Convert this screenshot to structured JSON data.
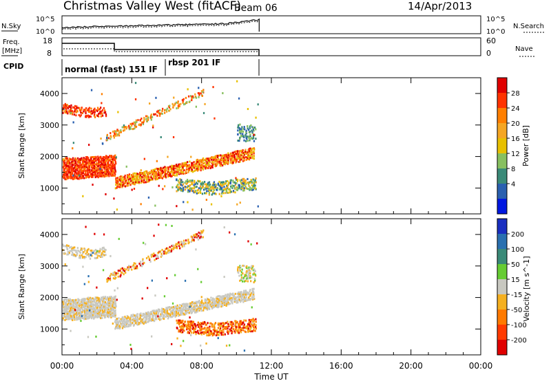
{
  "header": {
    "station": "Christmas Valley West (fitACF)",
    "beam": "Beam 06",
    "date": "14/Apr/2013"
  },
  "top_panels": {
    "nsky_label": "N.Sky",
    "nsky_ticks": [
      "10^5",
      "10^0"
    ],
    "nsky_right_ticks": [
      "10^5",
      "10^0"
    ],
    "nsearch_label": "N.Search",
    "freq_label": "Freq.",
    "freq_unit": "[MHz]",
    "freq_ticks": [
      "18",
      "8"
    ],
    "nave_ticks": [
      "60",
      "0"
    ],
    "nave_label": "Nave",
    "cpid_label": "CPID",
    "cpid_segments": [
      {
        "label": "normal (fast) 151 IF",
        "start_hr": 0,
        "end_hr": 6
      },
      {
        "label": "rbsp 201 IF",
        "start_hr": 6,
        "end_hr": 11.3
      }
    ]
  },
  "chart_data": [
    {
      "type": "heatmap",
      "name": "power",
      "ylabel": "Slant Range [km]",
      "yticks": [
        "4000",
        "3000",
        "2000",
        "1000"
      ],
      "ylim": [
        180,
        4500
      ],
      "xlim": [
        0,
        24
      ],
      "colorbar": {
        "label": "Power [dB]",
        "ticks": [
          "28",
          "24",
          "20",
          "16",
          "12",
          "8",
          "4"
        ],
        "colors": [
          "#e00000",
          "#ff3300",
          "#ff7f00",
          "#f5a623",
          "#e8c000",
          "#88c060",
          "#3a8a78",
          "#2a60b0",
          "#0018e0"
        ]
      }
    },
    {
      "type": "heatmap",
      "name": "velocity",
      "ylabel": "Slant Range [km]",
      "yticks": [
        "4000",
        "3000",
        "2000",
        "1000"
      ],
      "ylim": [
        180,
        4500
      ],
      "xlim": [
        0,
        24
      ],
      "colorbar": {
        "label": "Velocity [m s^-1]",
        "ticks": [
          "200",
          "100",
          "50",
          "15",
          "-15",
          "-50",
          "-100",
          "-200"
        ],
        "colors": [
          "#1a2fc0",
          "#2a70b0",
          "#3a8a78",
          "#66cc33",
          "#c8c8c0",
          "#f5b020",
          "#ff7a00",
          "#ff3a00",
          "#e00000"
        ]
      }
    }
  ],
  "xaxis": {
    "ticks": [
      "00:00",
      "04:00",
      "08:00",
      "12:00",
      "16:00",
      "20:00",
      "00:00"
    ],
    "label": "Time UT"
  }
}
